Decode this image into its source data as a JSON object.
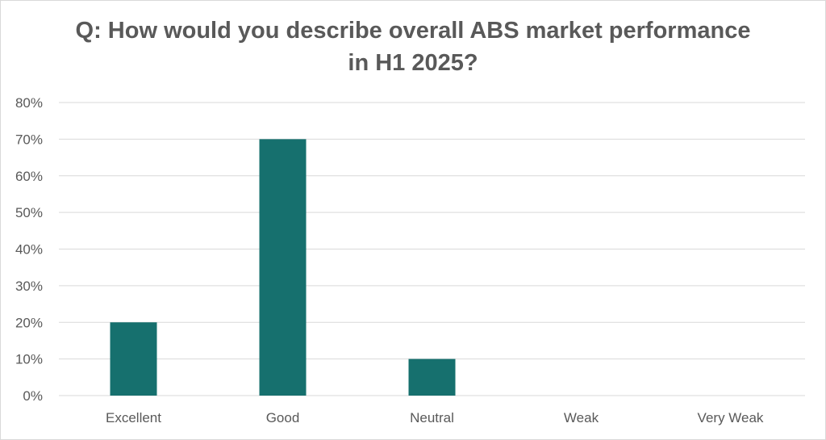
{
  "chart_data": {
    "type": "bar",
    "title_lines": [
      "Q: How would you describe overall ABS market performance",
      "in H1 2025?"
    ],
    "categories": [
      "Excellent",
      "Good",
      "Neutral",
      "Weak",
      "Very Weak"
    ],
    "values": [
      20,
      70,
      10,
      0,
      0
    ],
    "y_tick_labels": [
      "0%",
      "10%",
      "20%",
      "30%",
      "40%",
      "50%",
      "60%",
      "70%",
      "80%"
    ],
    "ylim": [
      0,
      80
    ],
    "grid": true,
    "legend": "none",
    "bar_color": "#16706e",
    "grid_color": "#d9d9d9",
    "text_color": "#595959"
  }
}
